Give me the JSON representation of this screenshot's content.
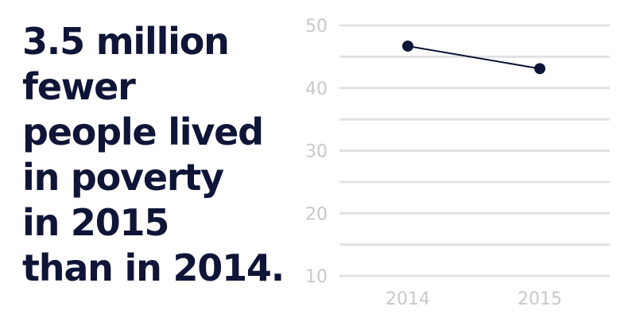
{
  "headline": {
    "lines": [
      "3.5 million",
      "fewer",
      "people lived",
      "in poverty",
      "in 2015",
      "than in 2014."
    ]
  },
  "colors": {
    "headline": "#0f1537",
    "gridline": "#e2e2e2",
    "tick_label": "#c8c8c8",
    "series": "#0f1537"
  },
  "chart_data": {
    "type": "line",
    "x": [
      "2014",
      "2015"
    ],
    "series": [
      {
        "values": [
          46.7,
          43.1
        ]
      }
    ],
    "yticks": [
      10,
      20,
      30,
      40,
      50
    ],
    "ylim": [
      10,
      50
    ],
    "ygrid_step": 5,
    "grid": true,
    "xlabel": "",
    "ylabel": ""
  }
}
